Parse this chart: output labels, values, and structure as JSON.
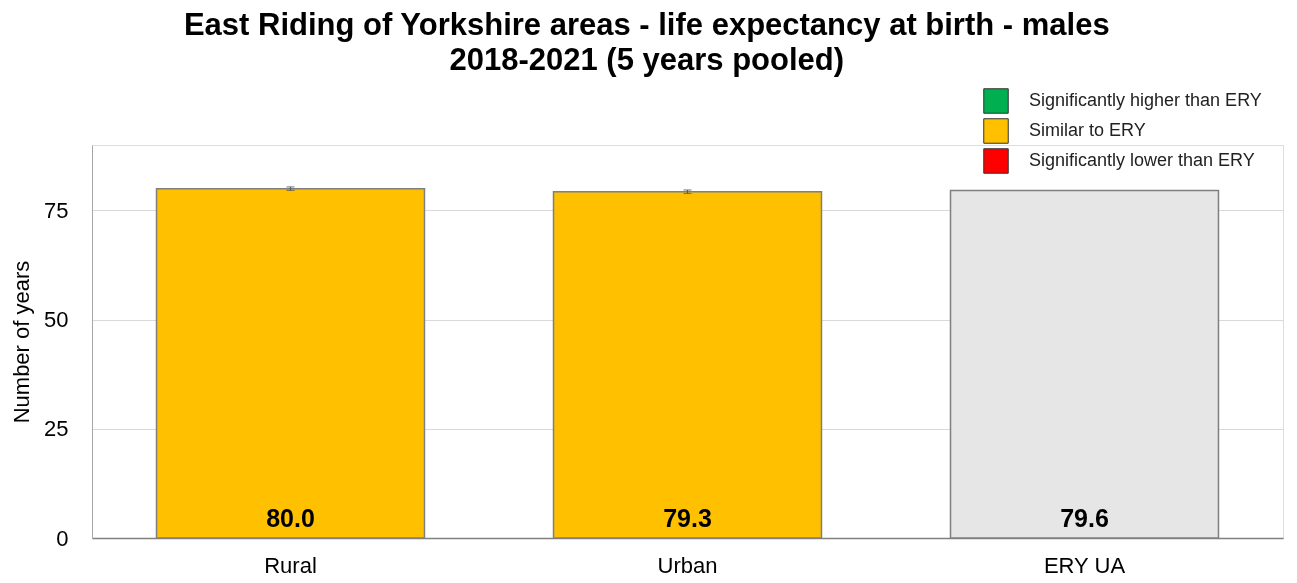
{
  "chart_data": {
    "type": "bar",
    "title": "East Riding of Yorkshire areas - life expectancy at birth - males\n2018-2021 (5 years pooled)",
    "ylabel": "Number of years",
    "categories": [
      "Rural",
      "Urban",
      "ERY UA"
    ],
    "series": [
      {
        "name": "Significantly higher than ERY",
        "color": "#00b050",
        "values": [
          null,
          null,
          null
        ]
      },
      {
        "name": "Similar to ERY",
        "color": "#ffc000",
        "values": [
          80.0,
          79.3,
          null
        ],
        "errors": [
          0.4,
          0.4,
          null
        ],
        "value_labels": [
          "80.0",
          "79.3",
          null
        ]
      },
      {
        "name": "Significantly lower than ERY",
        "color": "#ff0000",
        "values": [
          null,
          null,
          null
        ]
      },
      {
        "color": "#e6e6e6",
        "values": [
          null,
          null,
          79.6
        ],
        "value_labels": [
          null,
          null,
          "79.6"
        ]
      }
    ],
    "stacked": true,
    "ylim": [
      0,
      90
    ],
    "yticks": [
      0,
      25,
      50,
      75
    ],
    "grid": "y",
    "legend": "top right"
  }
}
